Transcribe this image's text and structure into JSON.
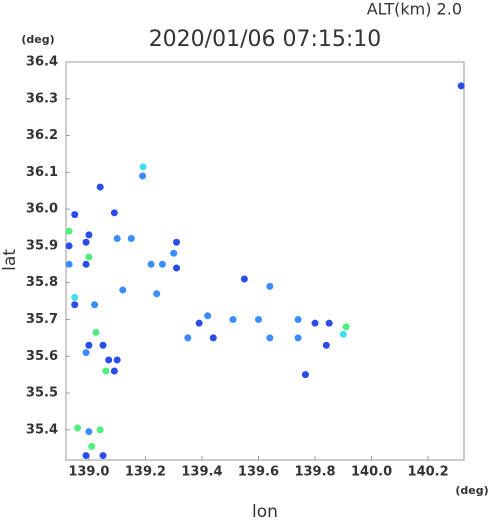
{
  "chart_data": {
    "type": "scatter",
    "title": "2020/01/06 07:15:10",
    "subtitle": "ALT(km)  2.0",
    "x_label": "lon",
    "y_label": "lat",
    "x_unit": "(deg)",
    "y_unit": "(deg)",
    "xlim": [
      138.919,
      140.327
    ],
    "ylim": [
      35.318,
      36.4
    ],
    "xticks": [
      {
        "value": 139.0,
        "label": "139.0"
      },
      139.2,
      139.4,
      139.6,
      139.8,
      {
        "value": 140.0,
        "label": "140.0"
      },
      140.2
    ],
    "yticks": [
      36.4,
      36.3,
      36.2,
      36.1,
      {
        "value": 36.0,
        "label": "36.0"
      },
      35.9,
      35.8,
      35.7,
      35.6,
      35.5,
      35.4
    ],
    "x": [
      140.317,
      139.192,
      139.19,
      139.04,
      138.95,
      138.93,
      138.93,
      139.0,
      138.99,
      139.0,
      138.99,
      138.93,
      139.09,
      139.1,
      139.15,
      139.31,
      139.3,
      139.26,
      139.31,
      139.22,
      139.55,
      139.64,
      139.24,
      138.95,
      138.95,
      139.02,
      139.12,
      139.42,
      139.39,
      139.51,
      139.6,
      139.74,
      139.8,
      139.85,
      139.91,
      139.9,
      139.025,
      139.0,
      139.05,
      138.99,
      139.07,
      139.1,
      139.06,
      139.09,
      139.35,
      139.44,
      139.64,
      139.74,
      139.84,
      139.766,
      138.96,
      139.0,
      139.04,
      139.01,
      139.05,
      138.99
    ],
    "y": [
      36.335,
      36.115,
      36.09,
      36.06,
      35.985,
      35.94,
      35.9,
      35.93,
      35.91,
      35.87,
      35.85,
      35.85,
      35.99,
      35.92,
      35.92,
      35.91,
      35.88,
      35.85,
      35.84,
      35.85,
      35.81,
      35.79,
      35.77,
      35.76,
      35.74,
      35.74,
      35.78,
      35.71,
      35.69,
      35.7,
      35.7,
      35.7,
      35.69,
      35.69,
      35.68,
      35.66,
      35.665,
      35.63,
      35.63,
      35.61,
      35.59,
      35.59,
      35.56,
      35.56,
      35.65,
      35.65,
      35.65,
      35.65,
      35.63,
      35.55,
      35.405,
      35.395,
      35.4,
      35.355,
      35.33,
      35.33
    ],
    "colors": [
      "#2a4de8",
      "#3ee0f0",
      "#3b8cff",
      "#2a4de8",
      "#2a4de8",
      "#4cf07a",
      "#2a4de8",
      "#2a4de8",
      "#2a4de8",
      "#4cf07a",
      "#2a4de8",
      "#3b8cff",
      "#2a4de8",
      "#3b8cff",
      "#3b8cff",
      "#2a4de8",
      "#3b8cff",
      "#3b8cff",
      "#2a4de8",
      "#3b8cff",
      "#2a4de8",
      "#3b8cff",
      "#3b8cff",
      "#3ee0f0",
      "#2a4de8",
      "#3b8cff",
      "#3b8cff",
      "#3b8cff",
      "#2a4de8",
      "#3b8cff",
      "#3b8cff",
      "#3b8cff",
      "#2a4de8",
      "#2a4de8",
      "#4cf07a",
      "#3ee0f0",
      "#4cf07a",
      "#2a4de8",
      "#2a4de8",
      "#3b8cff",
      "#2a4de8",
      "#2a4de8",
      "#4cf07a",
      "#2a4de8",
      "#3b8cff",
      "#2a4de8",
      "#3b8cff",
      "#3b8cff",
      "#2a4de8",
      "#2a4de8",
      "#4cf07a",
      "#3b8cff",
      "#4cf07a",
      "#4cf07a",
      "#2a4de8",
      "#2a4de8"
    ]
  }
}
